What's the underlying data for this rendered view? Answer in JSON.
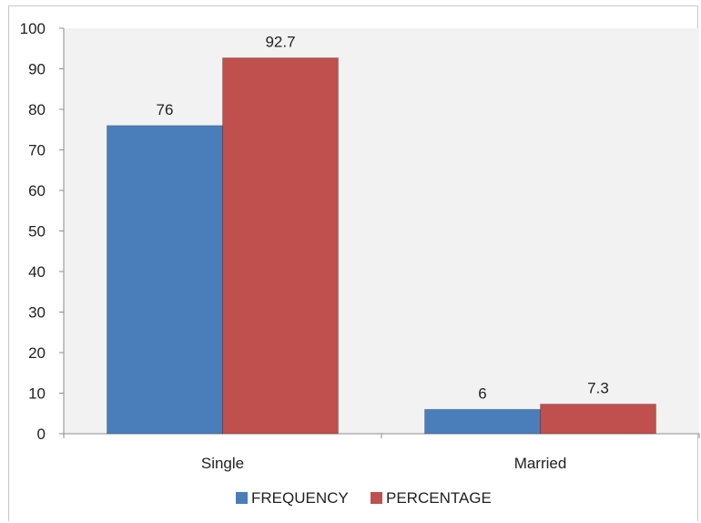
{
  "chart_data": {
    "type": "bar",
    "categories": [
      "Single",
      "Married"
    ],
    "series": [
      {
        "name": "FREQUENCY",
        "values": [
          76,
          6
        ],
        "color": "#4a7ebb"
      },
      {
        "name": "PERCENTAGE",
        "values": [
          92.7,
          7.3
        ],
        "color": "#c0504d"
      }
    ],
    "data_labels": [
      [
        "76",
        "6"
      ],
      [
        "92.7",
        "7.3"
      ]
    ],
    "title": "",
    "xlabel": "",
    "ylabel": "",
    "ylim": [
      0,
      100
    ],
    "yticks": [
      0,
      10,
      20,
      30,
      40,
      50,
      60,
      70,
      80,
      90,
      100
    ],
    "grid": false,
    "plot_background": "#f2f2f2",
    "legend": {
      "position": "bottom"
    }
  }
}
